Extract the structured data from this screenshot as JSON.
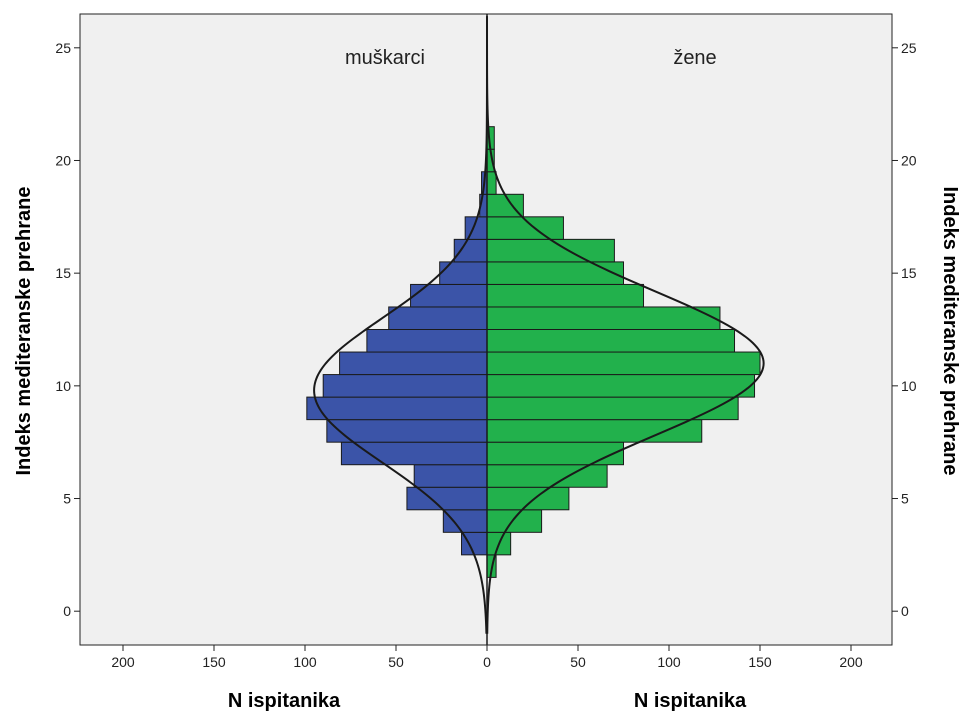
{
  "chart_data": {
    "type": "bar",
    "orientation": "horizontal-back-to-back",
    "ylabel_left": "Indeks mediteranske prehrane",
    "ylabel_right": "Indeks mediteranske prehrane",
    "xlabel_left": "N ispitanika",
    "xlabel_right": "N ispitanika",
    "xlim": [
      0,
      200
    ],
    "ylim": [
      -1.5,
      26.5
    ],
    "x_ticks": [
      0,
      50,
      100,
      150,
      200
    ],
    "y_ticks": [
      0,
      5,
      10,
      15,
      20,
      25
    ],
    "bin_width": 1,
    "grid": false,
    "colors": {
      "men": "#3b54a8",
      "women": "#22b14c",
      "plot_bg": "#f0f0f0",
      "curve": "#1a1a1a"
    },
    "series": [
      {
        "name": "muškarci",
        "bins": [
          {
            "y": 3,
            "value": 14
          },
          {
            "y": 4,
            "value": 24
          },
          {
            "y": 5,
            "value": 44
          },
          {
            "y": 6,
            "value": 40
          },
          {
            "y": 7,
            "value": 80
          },
          {
            "y": 8,
            "value": 88
          },
          {
            "y": 9,
            "value": 99
          },
          {
            "y": 10,
            "value": 90
          },
          {
            "y": 11,
            "value": 81
          },
          {
            "y": 12,
            "value": 66
          },
          {
            "y": 13,
            "value": 54
          },
          {
            "y": 14,
            "value": 42
          },
          {
            "y": 15,
            "value": 26
          },
          {
            "y": 16,
            "value": 18
          },
          {
            "y": 17,
            "value": 12
          },
          {
            "y": 18,
            "value": 4
          },
          {
            "y": 19,
            "value": 3
          }
        ],
        "normal_fit": {
          "mean": 9.8,
          "sd": 3.2,
          "peak": 95
        }
      },
      {
        "name": "žene",
        "bins": [
          {
            "y": 2,
            "value": 5
          },
          {
            "y": 3,
            "value": 13
          },
          {
            "y": 4,
            "value": 30
          },
          {
            "y": 5,
            "value": 45
          },
          {
            "y": 6,
            "value": 66
          },
          {
            "y": 7,
            "value": 75
          },
          {
            "y": 8,
            "value": 118
          },
          {
            "y": 9,
            "value": 138
          },
          {
            "y": 10,
            "value": 147
          },
          {
            "y": 11,
            "value": 150
          },
          {
            "y": 12,
            "value": 136
          },
          {
            "y": 13,
            "value": 128
          },
          {
            "y": 14,
            "value": 86
          },
          {
            "y": 15,
            "value": 75
          },
          {
            "y": 16,
            "value": 70
          },
          {
            "y": 17,
            "value": 42
          },
          {
            "y": 18,
            "value": 20
          },
          {
            "y": 19,
            "value": 5
          },
          {
            "y": 20,
            "value": 4
          },
          {
            "y": 21,
            "value": 4
          }
        ],
        "normal_fit": {
          "mean": 11.0,
          "sd": 3.2,
          "peak": 152
        }
      }
    ]
  }
}
